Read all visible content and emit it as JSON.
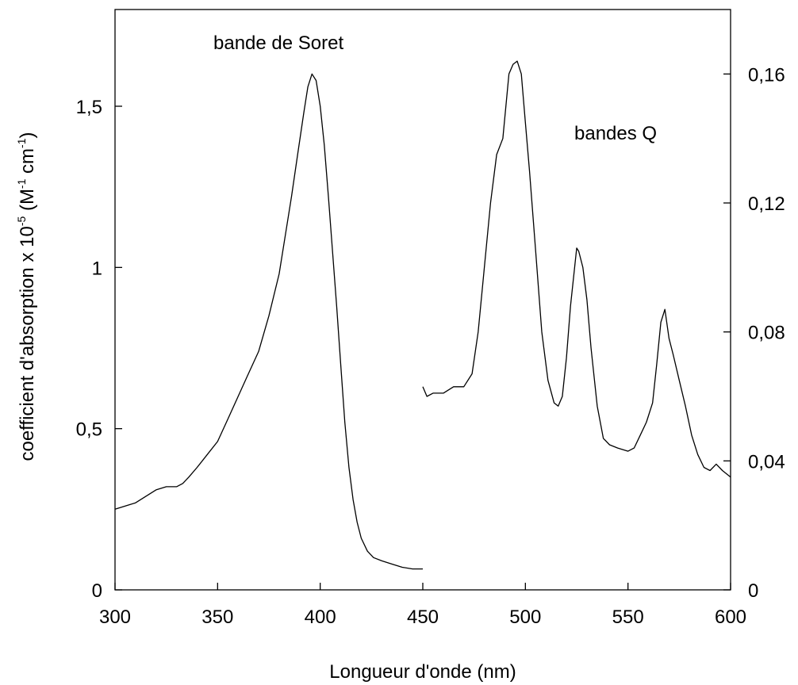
{
  "chart_data": {
    "type": "line",
    "xlabel": "Longueur d'onde (nm)",
    "ylabel_text": "coefficient d'absorption x 10",
    "ylabel_exp": "-5",
    "ylabel_unit1": " (M",
    "ylabel_unit1_exp": "-1",
    "ylabel_unit2": " cm",
    "ylabel_unit2_exp": "-1",
    "ylabel_close": ")",
    "xlim": [
      300,
      600
    ],
    "ylim_left": [
      0,
      1.8
    ],
    "ylim_right": [
      0,
      0.18
    ],
    "xticks": [
      300,
      350,
      400,
      450,
      500,
      550,
      600
    ],
    "xtick_labels": [
      "300",
      "350",
      "400",
      "450",
      "500",
      "550",
      "600"
    ],
    "yticks_left": [
      0,
      0.5,
      1,
      1.5
    ],
    "ytick_labels_left": [
      "0",
      "0,5",
      "1",
      "1,5"
    ],
    "yticks_right": [
      0,
      0.04,
      0.08,
      0.12,
      0.16
    ],
    "ytick_labels_right": [
      "0",
      "0,04",
      "0,08",
      "0,12",
      "0,16"
    ],
    "grid": false,
    "annotations": {
      "soret": "bande de Soret",
      "q": "bandes Q"
    },
    "series": [
      {
        "axis": "left",
        "color": "#000000",
        "x": [
          300,
          305,
          310,
          315,
          320,
          325,
          330,
          333,
          336,
          340,
          345,
          350,
          355,
          360,
          365,
          370,
          375,
          380,
          383,
          386,
          389,
          392,
          394,
          396,
          398,
          400,
          402,
          404,
          406,
          408,
          410,
          412,
          414,
          416,
          418,
          420,
          423,
          426,
          430,
          435,
          440,
          445,
          450
        ],
        "y": [
          0.25,
          0.26,
          0.27,
          0.29,
          0.31,
          0.32,
          0.32,
          0.33,
          0.35,
          0.38,
          0.42,
          0.46,
          0.53,
          0.6,
          0.67,
          0.74,
          0.85,
          0.98,
          1.1,
          1.22,
          1.35,
          1.48,
          1.56,
          1.6,
          1.58,
          1.5,
          1.38,
          1.22,
          1.05,
          0.88,
          0.7,
          0.52,
          0.38,
          0.28,
          0.21,
          0.16,
          0.12,
          0.1,
          0.09,
          0.08,
          0.07,
          0.065,
          0.065
        ]
      },
      {
        "axis": "right",
        "color": "#000000",
        "x": [
          450,
          452,
          455,
          460,
          465,
          470,
          474,
          477,
          480,
          483,
          486,
          489,
          492,
          494,
          496,
          498,
          500,
          502,
          505,
          508,
          511,
          514,
          516,
          518,
          520,
          522,
          524,
          525,
          526,
          528,
          530,
          532,
          535,
          538,
          541,
          545,
          550,
          553,
          556,
          559,
          562,
          564,
          566,
          568,
          570,
          572,
          575,
          578,
          581,
          584,
          587,
          590,
          593,
          596,
          600
        ],
        "y": [
          0.063,
          0.06,
          0.061,
          0.061,
          0.063,
          0.063,
          0.067,
          0.08,
          0.1,
          0.12,
          0.135,
          0.14,
          0.16,
          0.163,
          0.164,
          0.16,
          0.145,
          0.13,
          0.105,
          0.08,
          0.065,
          0.058,
          0.057,
          0.06,
          0.072,
          0.088,
          0.1,
          0.106,
          0.105,
          0.1,
          0.09,
          0.075,
          0.057,
          0.047,
          0.045,
          0.044,
          0.043,
          0.044,
          0.048,
          0.052,
          0.058,
          0.07,
          0.083,
          0.087,
          0.078,
          0.073,
          0.065,
          0.057,
          0.048,
          0.042,
          0.038,
          0.037,
          0.039,
          0.037,
          0.035
        ]
      }
    ]
  }
}
